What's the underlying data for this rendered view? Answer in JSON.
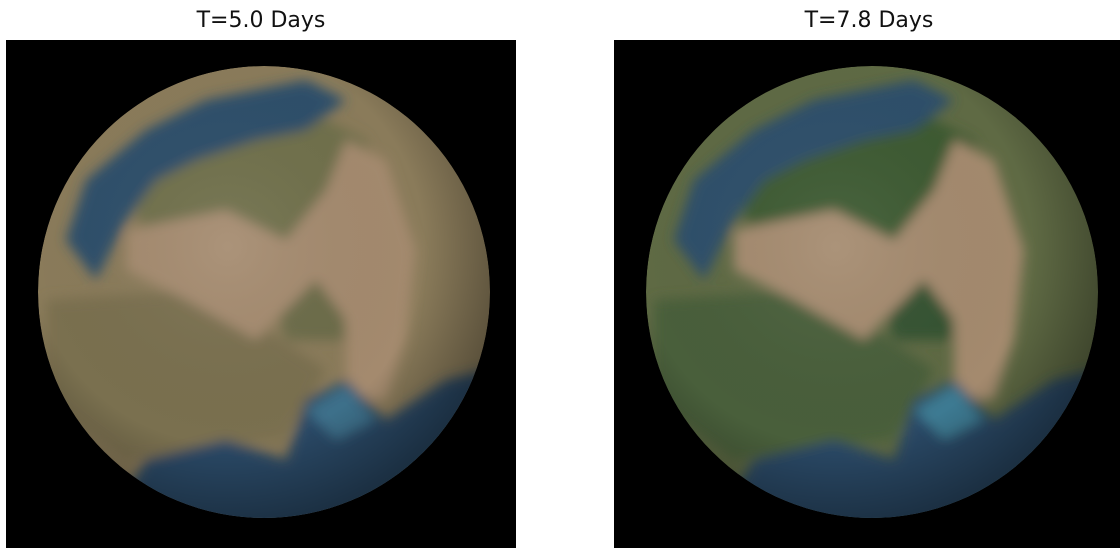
{
  "panels": [
    {
      "title": "T=5.0 Days",
      "land_color": "#6b6b4a",
      "desert_color": "#a48a6e",
      "ocean_color": "#2f4f6a",
      "shallow_color": "#3d6f8a"
    },
    {
      "title": "T=7.8 Days",
      "land_color": "#3e5a32",
      "desert_color": "#a48a6e",
      "ocean_color": "#2f4f6a",
      "shallow_color": "#3d7a92"
    }
  ]
}
